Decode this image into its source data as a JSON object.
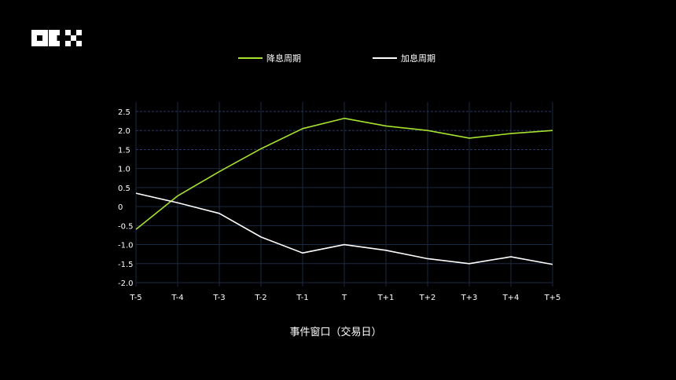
{
  "logo_text": "OKX",
  "chart_data": {
    "type": "line",
    "categories": [
      "T-5",
      "T-4",
      "T-3",
      "T-2",
      "T-1",
      "T",
      "T+1",
      "T+2",
      "T+3",
      "T+4",
      "T+5"
    ],
    "series": [
      {
        "name": "降息周期",
        "color": "#a6e22e",
        "values": [
          -0.6,
          0.28,
          0.92,
          1.52,
          2.05,
          2.32,
          2.12,
          2.0,
          1.8,
          1.92,
          2.0
        ]
      },
      {
        "name": "加息周期",
        "color": "#ffffff",
        "values": [
          0.35,
          0.1,
          -0.18,
          -0.8,
          -1.22,
          -1.0,
          -1.15,
          -1.37,
          -1.5,
          -1.32,
          -1.52
        ]
      }
    ],
    "y_ticks": [
      "2.5",
      "2.0",
      "1.5",
      "1.0",
      "0.5",
      "0",
      "-0.5",
      "-1.0",
      "-1.5",
      "-2.0"
    ],
    "ylim": [
      -2.0,
      2.5
    ],
    "xlabel": "事件窗口（交易日）",
    "ylabel": "",
    "grid": true,
    "legend_position": "top-center"
  }
}
